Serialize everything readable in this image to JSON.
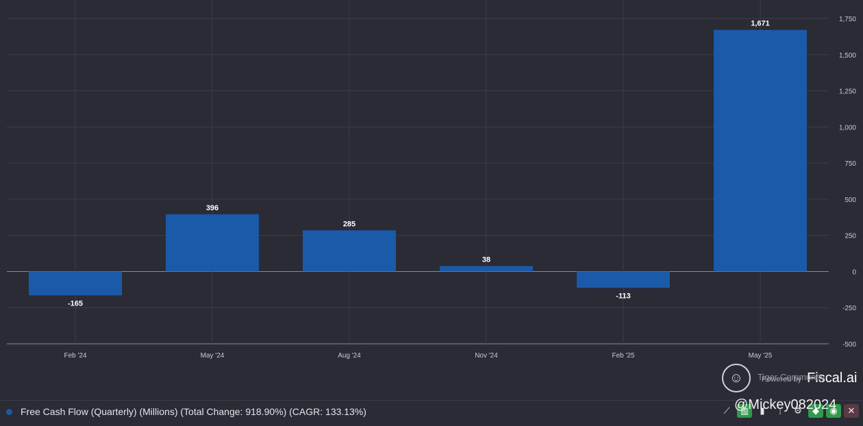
{
  "chart_data": {
    "type": "bar",
    "categories": [
      "Feb '24",
      "May '24",
      "Aug '24",
      "Nov '24",
      "Feb '25",
      "May '25"
    ],
    "values": [
      -165,
      396,
      285,
      38,
      -113,
      1671
    ],
    "data_labels": [
      "-165",
      "396",
      "285",
      "38",
      "-113",
      "1,671"
    ],
    "y_ticks": [
      1750,
      1500,
      1250,
      1000,
      750,
      500,
      250,
      0,
      -250,
      -500
    ],
    "y_tick_labels": [
      "1,750",
      "1,500",
      "1,250",
      "1,000",
      "750",
      "500",
      "250",
      "0",
      "-250",
      "-500"
    ],
    "ylim": [
      -500,
      1750
    ],
    "grid": true,
    "y_axis_side": "right",
    "bar_color": "#1a5aa8"
  },
  "legend": {
    "color": "#1a5aa8",
    "text": "Free Cash Flow (Quarterly) (Millions) (Total Change: 918.90%) (CAGR: 133.13%)"
  },
  "toolbar": {
    "items": [
      {
        "name": "line-chart-icon",
        "glyph": "⟋"
      },
      {
        "name": "bar-chart-icon",
        "glyph": "▥"
      },
      {
        "name": "column-chart-icon",
        "glyph": "▮"
      },
      {
        "name": "more-icon",
        "glyph": "⁞"
      },
      {
        "name": "settings-icon",
        "glyph": "⚙"
      },
      {
        "name": "tag-icon",
        "glyph": "◆"
      },
      {
        "name": "eye-icon",
        "glyph": "◉"
      },
      {
        "name": "close-icon",
        "glyph": "✕"
      }
    ]
  },
  "watermark": {
    "powered_by": "Powered by",
    "brand": "Fiscal.ai",
    "community": "Tiger Community",
    "handle": "@Mickey082024"
  }
}
